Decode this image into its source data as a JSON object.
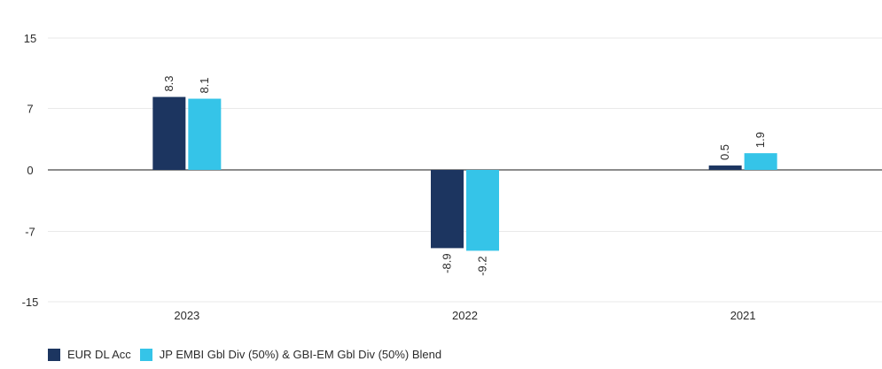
{
  "colors": {
    "series1": "#1c3560",
    "series2": "#35c4e8",
    "grid": "#e9e9e9",
    "zero": "#1a1a1a"
  },
  "chart_data": {
    "type": "bar",
    "categories": [
      "2023",
      "2022",
      "2021"
    ],
    "series": [
      {
        "name": "EUR DL Acc",
        "values": [
          8.3,
          -8.9,
          0.5
        ],
        "labels": [
          "8.3",
          "-8.9",
          "0.5"
        ]
      },
      {
        "name": "JP EMBI Gbl Div (50%) & GBI-EM Gbl Div (50%) Blend",
        "values": [
          8.1,
          -9.2,
          1.9
        ],
        "labels": [
          "8.1",
          "-9.2",
          "1.9"
        ]
      }
    ],
    "yticks": [
      "15",
      "7",
      "0",
      "-7",
      "-15"
    ],
    "ytick_values": [
      15,
      7,
      0,
      -7,
      -15
    ],
    "ylim": [
      -15,
      15
    ],
    "grid": true,
    "legend_position": "bottom-left"
  }
}
